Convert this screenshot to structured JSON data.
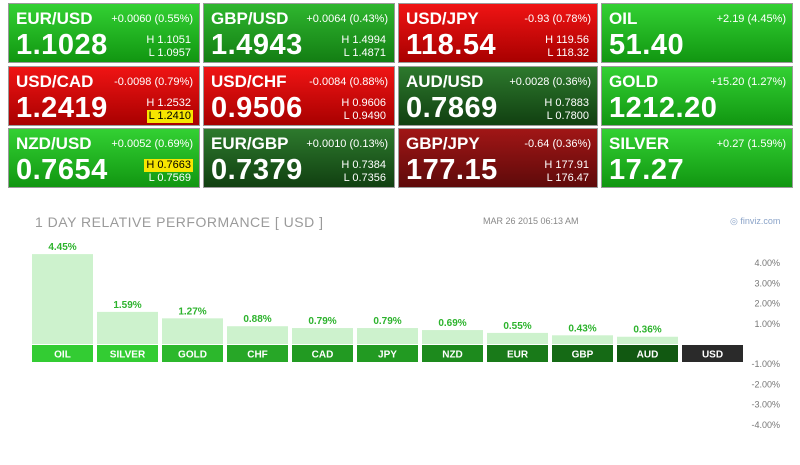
{
  "tiles": [
    {
      "name": "EUR/USD",
      "change": "+0.0060 (0.55%)",
      "price": "1.1028",
      "high": "H 1.1051",
      "low": "L 1.0957",
      "style": "g-strong",
      "hl": ""
    },
    {
      "name": "GBP/USD",
      "change": "+0.0064 (0.43%)",
      "price": "1.4943",
      "high": "H 1.4994",
      "low": "L 1.4871",
      "style": "g-mid",
      "hl": ""
    },
    {
      "name": "USD/JPY",
      "change": "-0.93 (0.78%)",
      "price": "118.54",
      "high": "H 119.56",
      "low": "L 118.32",
      "style": "r-strong",
      "hl": ""
    },
    {
      "name": "OIL",
      "change": "+2.19 (4.45%)",
      "price": "51.40",
      "high": "",
      "low": "",
      "style": "g-strong",
      "hl": ""
    },
    {
      "name": "USD/CAD",
      "change": "-0.0098 (0.79%)",
      "price": "1.2419",
      "high": "H 1.2532",
      "low": "L 1.2410",
      "style": "r-strong",
      "hl": "low"
    },
    {
      "name": "USD/CHF",
      "change": "-0.0084 (0.88%)",
      "price": "0.9506",
      "high": "H 0.9606",
      "low": "L 0.9490",
      "style": "r-strong",
      "hl": ""
    },
    {
      "name": "AUD/USD",
      "change": "+0.0028 (0.36%)",
      "price": "0.7869",
      "high": "H 0.7883",
      "low": "L 0.7800",
      "style": "g-dark",
      "hl": ""
    },
    {
      "name": "GOLD",
      "change": "+15.20 (1.27%)",
      "price": "1212.20",
      "high": "",
      "low": "",
      "style": "g-strong",
      "hl": ""
    },
    {
      "name": "NZD/USD",
      "change": "+0.0052 (0.69%)",
      "price": "0.7654",
      "high": "H 0.7663",
      "low": "L 0.7569",
      "style": "g-strong",
      "hl": "high"
    },
    {
      "name": "EUR/GBP",
      "change": "+0.0010 (0.13%)",
      "price": "0.7379",
      "high": "H 0.7384",
      "low": "L 0.7356",
      "style": "g-dark",
      "hl": ""
    },
    {
      "name": "GBP/JPY",
      "change": "-0.64 (0.36%)",
      "price": "177.15",
      "high": "H 177.91",
      "low": "L 176.47",
      "style": "r-dark",
      "hl": ""
    },
    {
      "name": "SILVER",
      "change": "+0.27 (1.59%)",
      "price": "17.27",
      "high": "",
      "low": "",
      "style": "g-strong",
      "hl": ""
    }
  ],
  "chart_data": {
    "type": "bar",
    "title": "1 DAY RELATIVE PERFORMANCE   [ USD ]",
    "date": "MAR 26 2015 06:13 AM",
    "brand": "finviz.com",
    "categories": [
      "OIL",
      "SILVER",
      "GOLD",
      "CHF",
      "CAD",
      "JPY",
      "NZD",
      "EUR",
      "GBP",
      "AUD",
      "USD"
    ],
    "values": [
      4.45,
      1.59,
      1.27,
      0.88,
      0.79,
      0.79,
      0.69,
      0.55,
      0.43,
      0.36,
      0.0
    ],
    "value_labels": [
      "4.45%",
      "1.59%",
      "1.27%",
      "0.88%",
      "0.79%",
      "0.79%",
      "0.69%",
      "0.55%",
      "0.43%",
      "0.36%",
      ""
    ],
    "ylim": [
      -4.0,
      4.0
    ],
    "yticks": [
      4.0,
      3.0,
      2.0,
      1.0,
      -1.0,
      -2.0,
      -3.0,
      -4.0
    ],
    "ytick_labels": [
      "4.00%",
      "3.00%",
      "2.00%",
      "1.00%",
      "-1.00%",
      "-2.00%",
      "-3.00%",
      "-4.00%"
    ],
    "colors": {
      "bar_fill": "#cdf2cd",
      "value_label": "#2db32d",
      "tick_label": "#777777",
      "label_boxes": [
        "#33cc33",
        "#33cc33",
        "#2cb82c",
        "#27a727",
        "#229a22",
        "#229a22",
        "#1d8a1d",
        "#197a19",
        "#156a15",
        "#115811",
        "#2a2a2a"
      ]
    },
    "grid": false
  }
}
